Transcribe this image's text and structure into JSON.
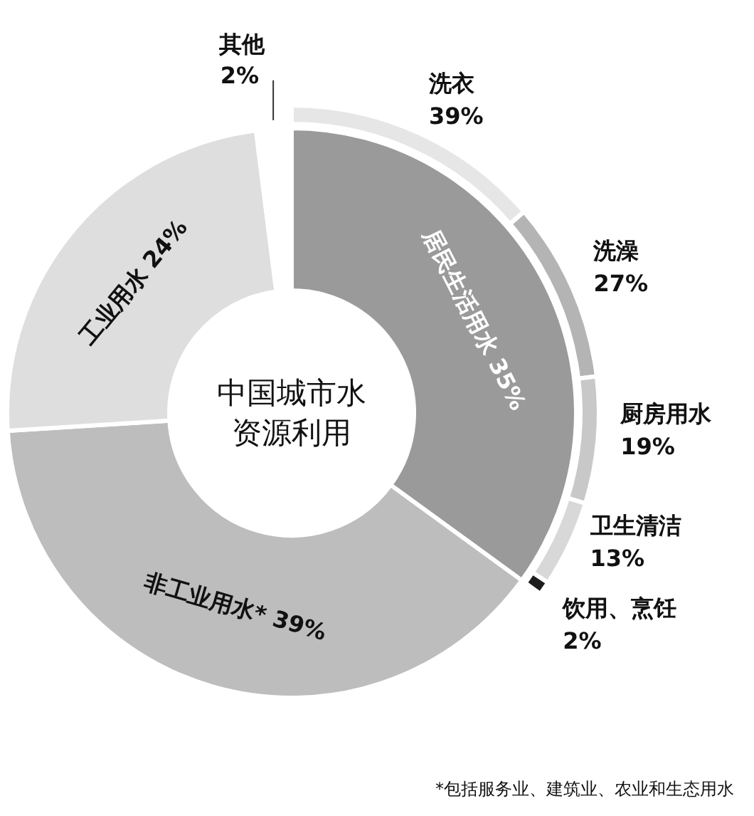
{
  "chart_data": [
    {
      "type": "donut",
      "title": "中国城市水资源利用",
      "categories": [
        "居民生活用水",
        "非工业用水*",
        "工业用水",
        "其他"
      ],
      "values": [
        35,
        39,
        24,
        2
      ],
      "value_labels": [
        "35%",
        "39%",
        "24%",
        "2%"
      ],
      "colors": [
        "#9a9a9a",
        "#bdbdbd",
        "#dedede",
        "#ffffff"
      ],
      "legend": false,
      "annotations": [
        "*包括服务业、建筑业、农业和生态用水"
      ]
    },
    {
      "type": "donut",
      "categories": [
        "洗衣",
        "洗澡",
        "厨房用水",
        "卫生清洁",
        "饮用、烹饪"
      ],
      "values": [
        39,
        27,
        19,
        13,
        2
      ],
      "value_labels": [
        "39%",
        "27%",
        "19%",
        "13%",
        "2%"
      ],
      "colors": [
        "#e6e6e6",
        "#b4b4b4",
        "#c8c8c8",
        "#d8d8d8",
        "#1e1e1e"
      ],
      "legend": false
    }
  ]
}
